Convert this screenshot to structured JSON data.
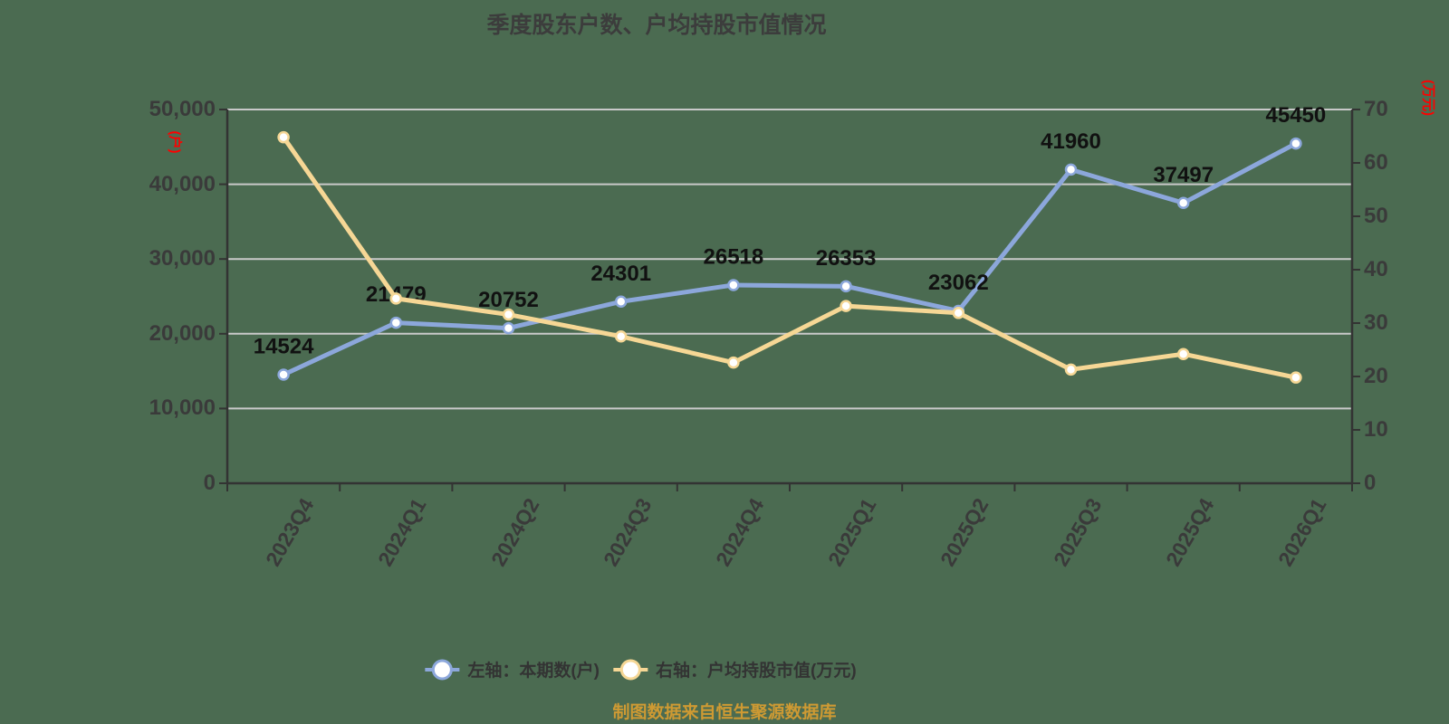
{
  "title": "季度股东户数、户均持股市值情况",
  "source_note": "制图数据来自恒生聚源数据库",
  "left_axis": {
    "unit_label": "(户)",
    "min": 0,
    "max": 50000,
    "ticks": [
      "0",
      "10,000",
      "20,000",
      "30,000",
      "40,000",
      "50,000"
    ]
  },
  "right_axis": {
    "unit_label": "(万元)",
    "min": 0,
    "max": 70,
    "ticks": [
      "0",
      "10",
      "20",
      "30",
      "40",
      "50",
      "60",
      "70"
    ]
  },
  "legend": [
    {
      "label": "左轴：本期数(户)",
      "color": "#8CA7DB"
    },
    {
      "label": "右轴：户均持股市值(万元)",
      "color": "#F6D795"
    }
  ],
  "colors": {
    "background": "#4B6B51",
    "blue": "#8CA7DB",
    "yellow": "#F6D795",
    "grid": "#C9C9C9",
    "axis": "#333333",
    "tick_text": "#3A3A3A",
    "data_label": "#111111",
    "marker_fill": "#FFFFFF",
    "unit_label": "#FF0000",
    "source_text": "#CE9A33"
  },
  "chart_data": {
    "type": "line",
    "title": "季度股东户数、户均持股市值情况",
    "categories": [
      "2023Q4",
      "2024Q1",
      "2024Q2",
      "2024Q3",
      "2024Q4",
      "2025Q1",
      "2025Q2",
      "2025Q3",
      "2025Q4",
      "2026Q1"
    ],
    "series": [
      {
        "name": "左轴：本期数(户)",
        "axis": "left",
        "color": "#8CA7DB",
        "values": [
          14524,
          21479,
          20752,
          24301,
          26518,
          26353,
          23062,
          41960,
          37497,
          45450
        ],
        "labels": [
          "14524",
          "21479",
          "20752",
          "24301",
          "26518",
          "26353",
          "23062",
          "41960",
          "37497",
          "45450"
        ],
        "labels_shown": true
      },
      {
        "name": "右轴：户均持股市值(万元)",
        "axis": "right",
        "color": "#F6D795",
        "values": [
          64.8,
          34.6,
          31.6,
          27.5,
          22.6,
          33.2,
          31.9,
          21.3,
          24.2,
          19.8
        ],
        "labels_shown": false
      }
    ],
    "left_ylim": [
      0,
      50000
    ],
    "right_ylim": [
      0,
      70
    ],
    "grid": true,
    "legend_position": "bottom"
  }
}
